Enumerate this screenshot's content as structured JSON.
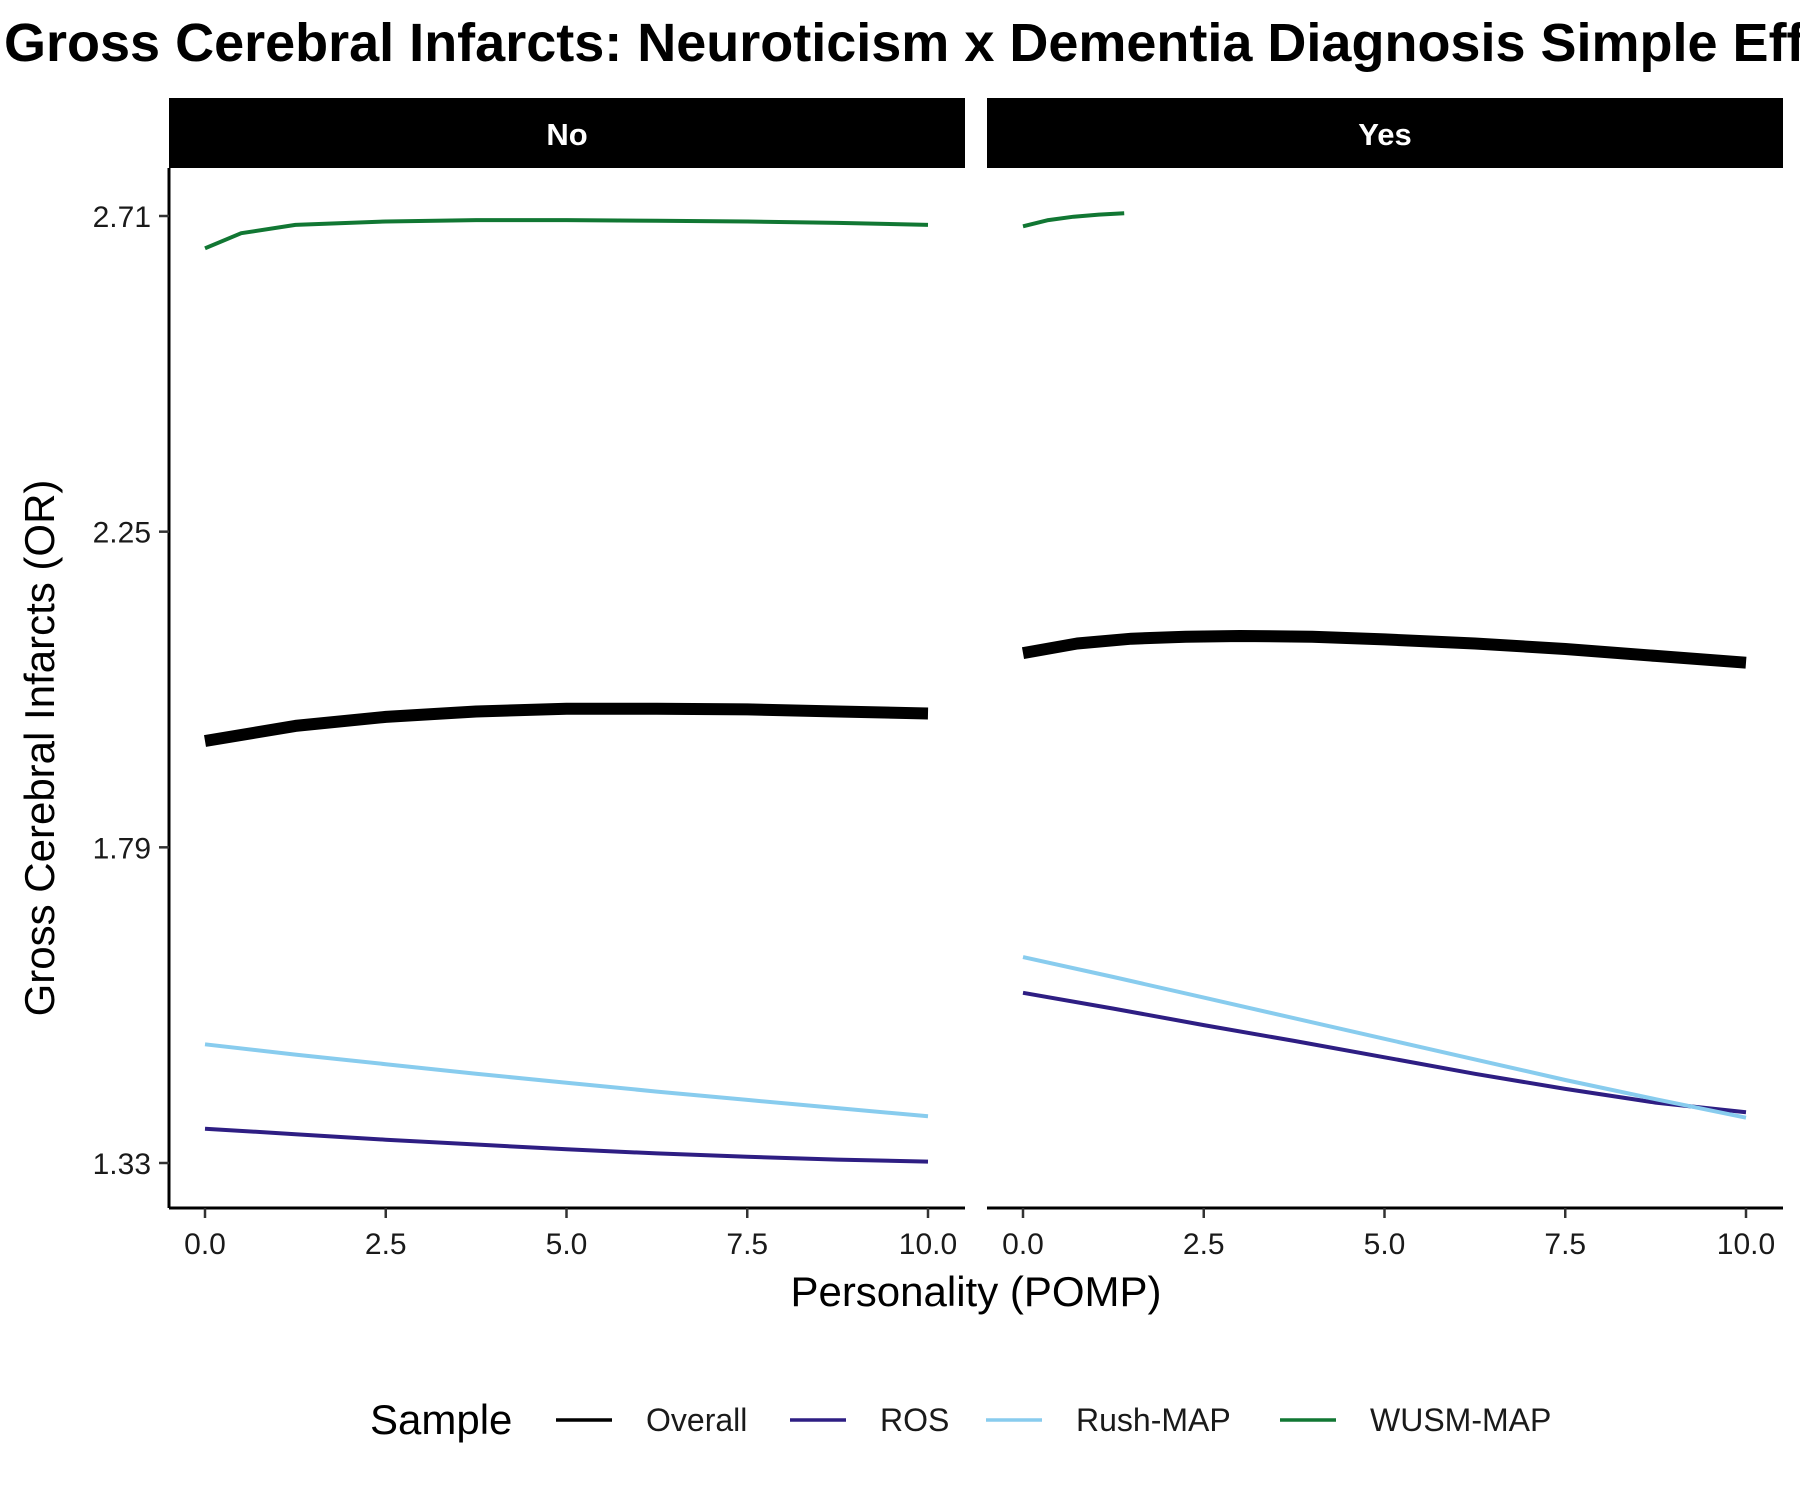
{
  "chart_data": {
    "type": "line",
    "title": "Gross Cerebral Infarcts: Neuroticism x Dementia Diagnosis Simple Effects",
    "xlabel": "Personality (POMP)",
    "ylabel": "Gross Cerebral Infarcts (OR)",
    "xlim": [
      0,
      10
    ],
    "ylim": [
      1.26,
      2.78
    ],
    "x_ticks": [
      "0.0",
      "2.5",
      "5.0",
      "7.5",
      "10.0"
    ],
    "y_ticks": [
      "1.33",
      "1.79",
      "2.25",
      "2.71"
    ],
    "grid": false,
    "legend": {
      "title": "Sample",
      "position": "bottom"
    },
    "panels": [
      {
        "label": "No",
        "series": [
          {
            "name": "Overall",
            "color": "#000000",
            "width": 12,
            "x": [
              0,
              1.25,
              2.5,
              3.75,
              5,
              6.25,
              7.5,
              8.75,
              10
            ],
            "y": [
              1.945,
              1.967,
              1.98,
              1.988,
              1.992,
              1.992,
              1.991,
              1.988,
              1.985
            ]
          },
          {
            "name": "ROS",
            "color": "#2e1e83",
            "width": 4,
            "x": [
              0,
              1.25,
              2.5,
              3.75,
              5,
              6.25,
              7.5,
              8.75,
              10
            ],
            "y": [
              1.38,
              1.372,
              1.364,
              1.357,
              1.35,
              1.344,
              1.339,
              1.335,
              1.332
            ]
          },
          {
            "name": "Rush-MAP",
            "color": "#88ccee",
            "width": 4,
            "x": [
              0,
              1.25,
              2.5,
              3.75,
              5,
              6.25,
              7.5,
              8.75,
              10
            ],
            "y": [
              1.503,
              1.488,
              1.474,
              1.46,
              1.447,
              1.434,
              1.422,
              1.41,
              1.398
            ]
          },
          {
            "name": "WUSM-MAP",
            "color": "#117733",
            "width": 4,
            "x": [
              0,
              0.5,
              1.25,
              2.5,
              3.75,
              5,
              6.25,
              7.5,
              8.75,
              10
            ],
            "y": [
              2.663,
              2.685,
              2.697,
              2.702,
              2.704,
              2.704,
              2.703,
              2.702,
              2.7,
              2.697
            ]
          }
        ]
      },
      {
        "label": "Yes",
        "series": [
          {
            "name": "Overall",
            "color": "#000000",
            "width": 12,
            "x": [
              0,
              0.75,
              1.5,
              2.25,
              3,
              4,
              5,
              6.25,
              7.5,
              8.75,
              10
            ],
            "y": [
              2.073,
              2.087,
              2.094,
              2.097,
              2.098,
              2.097,
              2.093,
              2.087,
              2.079,
              2.069,
              2.059
            ]
          },
          {
            "name": "ROS",
            "color": "#2e1e83",
            "width": 4,
            "x": [
              0,
              1.25,
              2.5,
              3.75,
              5,
              6.25,
              7.5,
              8.75,
              10
            ],
            "y": [
              1.578,
              1.555,
              1.531,
              1.508,
              1.484,
              1.46,
              1.438,
              1.418,
              1.404
            ]
          },
          {
            "name": "Rush-MAP",
            "color": "#88ccee",
            "width": 4,
            "x": [
              0,
              1.25,
              2.5,
              3.75,
              5,
              6.25,
              7.5,
              8.75,
              10
            ],
            "y": [
              1.63,
              1.601,
              1.571,
              1.541,
              1.511,
              1.481,
              1.451,
              1.423,
              1.396
            ]
          },
          {
            "name": "WUSM-MAP",
            "color": "#117733",
            "width": 4,
            "x": [
              0,
              0.35,
              0.7,
              1.05,
              1.4
            ],
            "y": [
              2.695,
              2.704,
              2.709,
              2.712,
              2.714
            ]
          }
        ]
      }
    ]
  }
}
